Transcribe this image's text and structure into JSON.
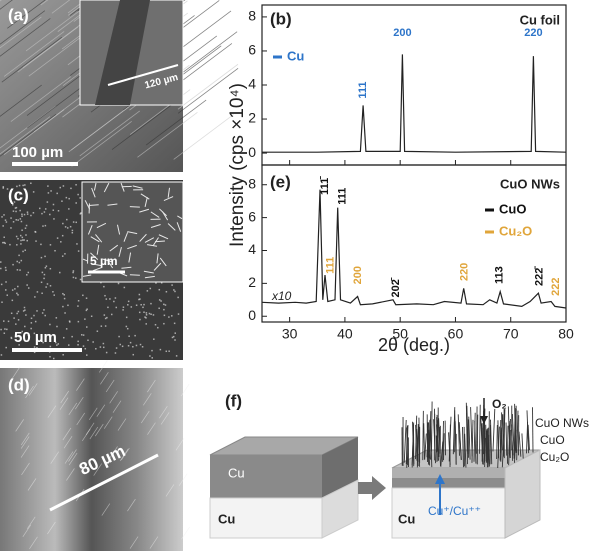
{
  "chart_data": [
    {
      "type": "line",
      "panel": "(b)",
      "title": "Cu foil",
      "ylabel": "Intensity (cps ×10⁴)",
      "line_color": "#222222",
      "legend": [
        {
          "name": "Cu",
          "color": "#2e75c9"
        }
      ],
      "x": [
        25,
        35,
        42.8,
        43.3,
        43.8,
        50,
        50.4,
        50.8,
        60,
        73.7,
        74.1,
        74.5,
        80
      ],
      "values": [
        0.05,
        0.05,
        0.1,
        2.8,
        0.1,
        0.1,
        5.8,
        0.1,
        0.05,
        0.1,
        5.7,
        0.1,
        0.05
      ],
      "peak_labels": [
        {
          "text": "111",
          "color": "#2e75c9"
        },
        {
          "text": "200",
          "color": "#2e75c9"
        },
        {
          "text": "220",
          "color": "#2e75c9"
        }
      ],
      "xlim": [
        25,
        80
      ],
      "ylim": [
        -0.7,
        8.7
      ],
      "yticks": [
        0,
        2,
        4,
        6,
        8
      ]
    },
    {
      "type": "line",
      "panel": "(e)",
      "title": "CuO NWs",
      "xlabel": "2θ (deg.)",
      "annotation": "x10",
      "line_color": "#222222",
      "legend": [
        {
          "name": "CuO",
          "color": "#111111"
        },
        {
          "name": "Cu₂O",
          "color": "#e0a53a"
        }
      ],
      "x": [
        25,
        28,
        31,
        33,
        34.8,
        35.5,
        36.0,
        36.4,
        36.9,
        38.2,
        38.7,
        39.2,
        41,
        42.3,
        42.8,
        45,
        48.7,
        49.2,
        53,
        56,
        58,
        61,
        61.5,
        62,
        65,
        66.2,
        67.5,
        68.1,
        68.7,
        72,
        73.5,
        75,
        75.5,
        77.3,
        78,
        80
      ],
      "values": [
        0.85,
        0.8,
        0.85,
        0.8,
        0.9,
        7.7,
        1.0,
        2.5,
        0.9,
        1.0,
        6.6,
        1.0,
        0.8,
        1.2,
        0.7,
        0.75,
        1.0,
        0.7,
        0.75,
        0.7,
        0.9,
        0.8,
        1.7,
        0.75,
        0.7,
        1.0,
        0.8,
        1.5,
        0.75,
        0.6,
        0.9,
        1.4,
        0.8,
        0.9,
        0.6,
        0.5
      ],
      "peak_labels": [
        {
          "text": "111̄",
          "color": "#111111"
        },
        {
          "text": "111",
          "color": "#111111"
        },
        {
          "text": "111",
          "color": "#e0a53a"
        },
        {
          "text": "200",
          "color": "#e0a53a"
        },
        {
          "text": "202̄",
          "color": "#111111"
        },
        {
          "text": "220",
          "color": "#e0a53a"
        },
        {
          "text": "113",
          "color": "#111111"
        },
        {
          "text": "222̄",
          "color": "#111111"
        },
        {
          "text": "222",
          "color": "#e0a53a"
        }
      ],
      "xlim": [
        25,
        80
      ],
      "ylim": [
        -0.35,
        9.2
      ],
      "xticks": [
        30,
        40,
        50,
        60,
        70,
        80
      ],
      "yticks": [
        0,
        2,
        4,
        6,
        8
      ]
    }
  ],
  "images": {
    "a": {
      "panel": "(a)",
      "scale": "100 µm",
      "inset_scale": "120 µm"
    },
    "c": {
      "panel": "(c)",
      "scale": "50 µm",
      "inset_scale": "5 µm"
    },
    "d": {
      "panel": "(d)",
      "scale": "80 µm"
    }
  },
  "schematic": {
    "panel": "(f)",
    "left_top": "Cu",
    "left_bottom": "Cu",
    "gas": "O₂",
    "nws": "CuO NWs",
    "cuo": "CuO",
    "cu2o": "Cu₂O",
    "ions": "Cu⁺/Cu⁺⁺",
    "right_bottom": "Cu"
  }
}
